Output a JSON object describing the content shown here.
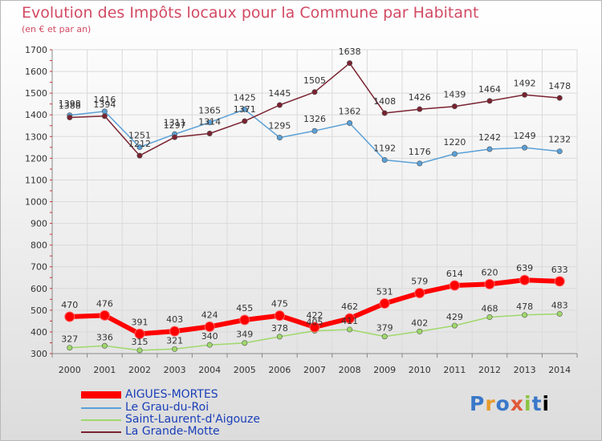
{
  "title": "Evolution des Impôts locaux pour la Commune par Habitant",
  "subtitle": "(en € et par an)",
  "chart_data": {
    "type": "line",
    "x": [
      "2000",
      "2001",
      "2002",
      "2003",
      "2004",
      "2005",
      "2006",
      "2007",
      "2008",
      "2009",
      "2010",
      "2011",
      "2012",
      "2013",
      "2014"
    ],
    "ylim": [
      300,
      1700
    ],
    "yticks": [
      300,
      400,
      500,
      600,
      700,
      800,
      900,
      1000,
      1100,
      1200,
      1300,
      1400,
      1500,
      1600,
      1700
    ],
    "grid": true,
    "legend_position": "bottom-left",
    "series": [
      {
        "name": "AIGUES-MORTES",
        "color": "#ff0000",
        "values": [
          470,
          476,
          391,
          403,
          424,
          455,
          475,
          422,
          462,
          531,
          579,
          614,
          620,
          639,
          633
        ]
      },
      {
        "name": "Le Grau-du-Roi",
        "color": "#5aa0d6",
        "values": [
          1398,
          1416,
          1251,
          1311,
          1365,
          1425,
          1295,
          1326,
          1362,
          1192,
          1176,
          1220,
          1242,
          1249,
          1232
        ]
      },
      {
        "name": "Saint-Laurent-d'Aigouze",
        "color": "#9fd86a",
        "values": [
          327,
          336,
          315,
          321,
          340,
          349,
          378,
          405,
          411,
          379,
          402,
          429,
          468,
          478,
          483
        ]
      },
      {
        "name": "La Grande-Motte",
        "color": "#7a2230",
        "values": [
          1388,
          1394,
          1212,
          1297,
          1314,
          1371,
          1445,
          1505,
          1638,
          1408,
          1426,
          1439,
          1464,
          1492,
          1478
        ]
      }
    ]
  },
  "logo": {
    "letters": [
      "P",
      "r",
      "o",
      "x",
      "i",
      "t",
      "i"
    ]
  }
}
